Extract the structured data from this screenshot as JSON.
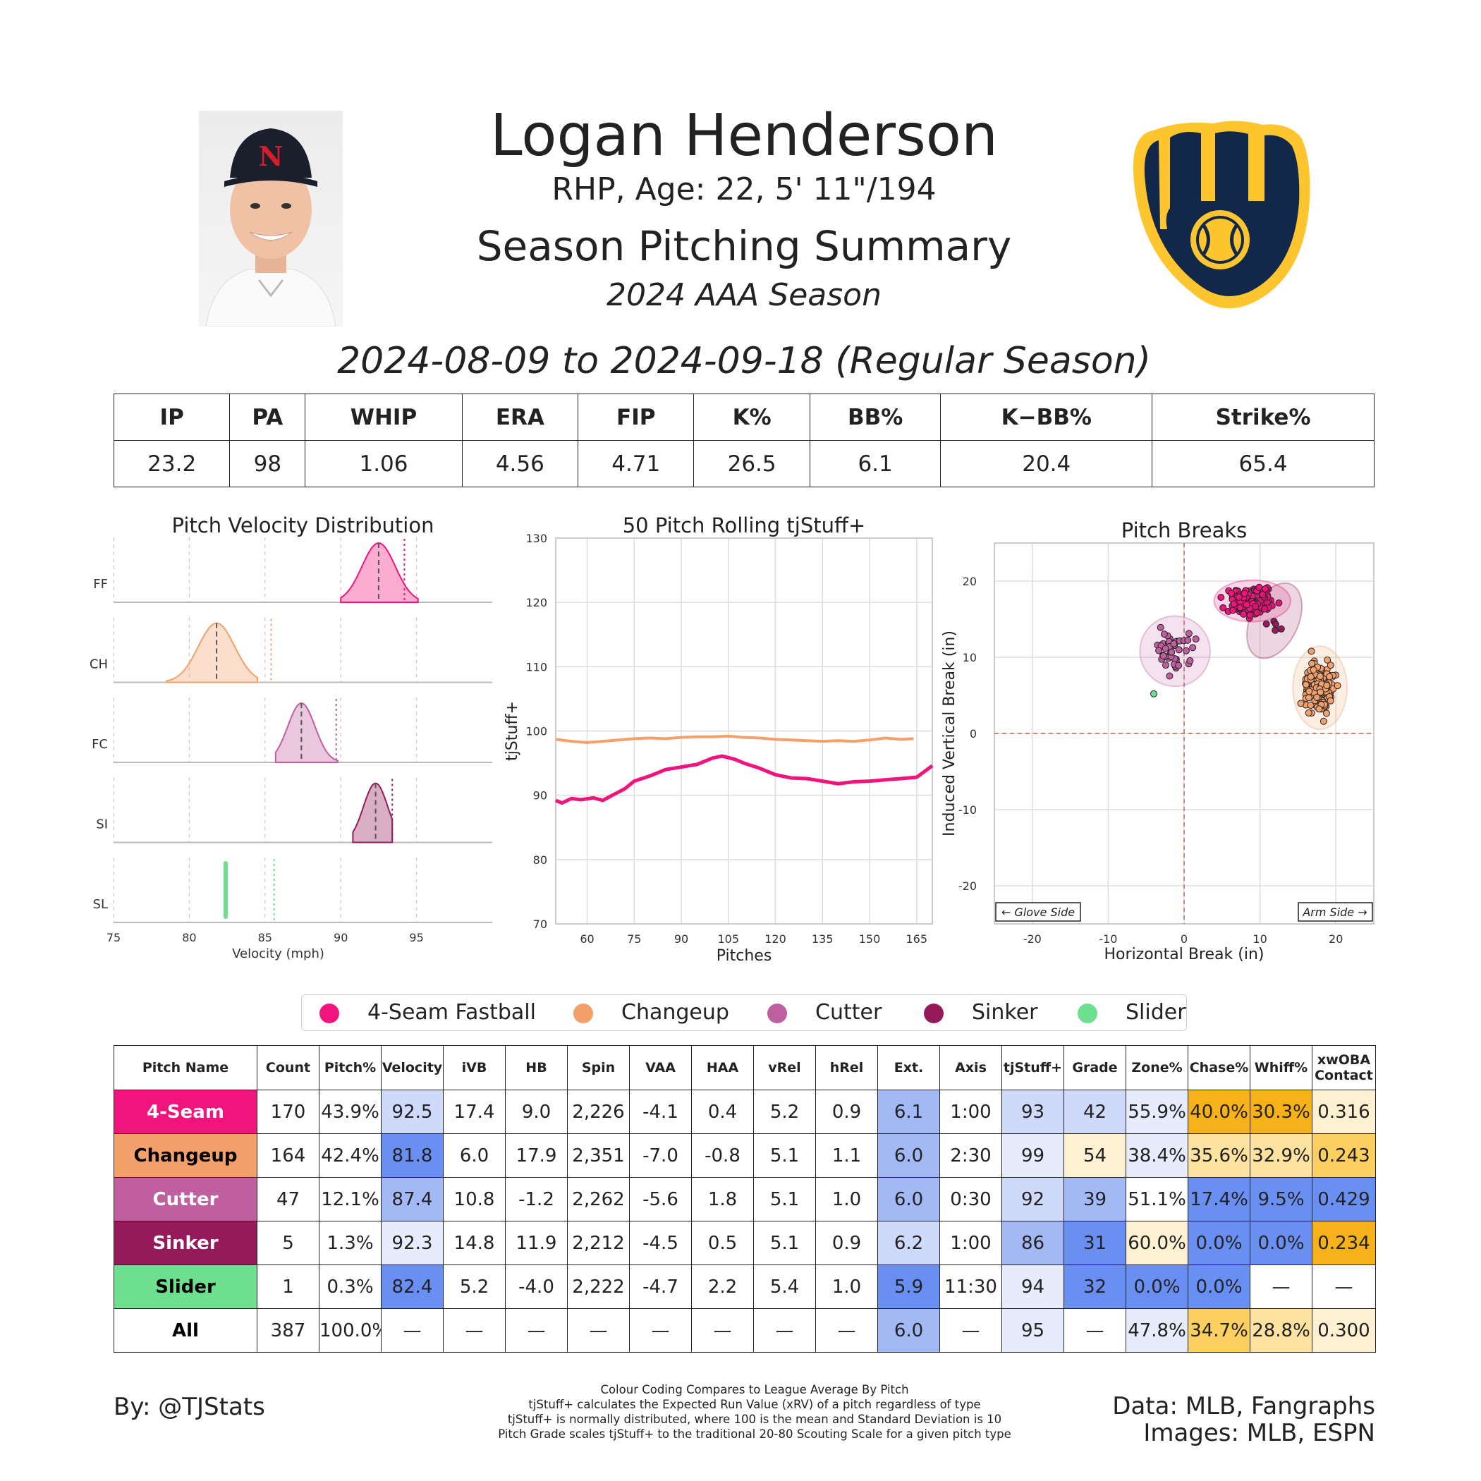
{
  "header": {
    "name": "Logan Henderson",
    "bio": "RHP, Age: 22, 5' 11\"/194",
    "title": "Season Pitching Summary",
    "season": "2024 AAA Season",
    "date_range": "2024-08-09 to 2024-09-18 (Regular Season)"
  },
  "colors": {
    "4-Seam": "#f0147c",
    "Changeup": "#f4a06b",
    "Cutter": "#c05fa0",
    "Sinker": "#941a5a",
    "Slider": "#6ddf8e",
    "blue_strong": "#6a8ff2",
    "blue_mid": "#a3b9f6",
    "blue_light": "#cfdafa",
    "blue_pale": "#e6ecfc",
    "gold_strong": "#f7b21a",
    "gold_mid": "#fbcf60",
    "gold_light": "#fde2a0",
    "gold_pale": "#fef1d2",
    "brewers_navy": "#12284b",
    "brewers_gold": "#ffc52f"
  },
  "stats": {
    "headers": [
      "IP",
      "PA",
      "WHIP",
      "ERA",
      "FIP",
      "K%",
      "BB%",
      "K−BB%",
      "Strike%"
    ],
    "values": [
      "23.2",
      "98",
      "1.06",
      "4.56",
      "4.71",
      "26.5",
      "6.1",
      "20.4",
      "65.4"
    ]
  },
  "legend": [
    "4-Seam Fastball",
    "Changeup",
    "Cutter",
    "Sinker",
    "Slider"
  ],
  "chart_data": [
    {
      "type": "area",
      "title": "Pitch Velocity Distribution",
      "xlabel": "Velocity (mph)",
      "xlim": [
        75,
        100
      ],
      "xticks": [
        "75",
        "80",
        "85",
        "90",
        "95"
      ],
      "series": [
        {
          "name": "FF",
          "mean": 92.5,
          "sd": 1.1,
          "min": 90,
          "max": 95.1,
          "league_avg": 94.2
        },
        {
          "name": "CH",
          "mean": 81.8,
          "sd": 1.2,
          "min": 78.5,
          "max": 84.5,
          "league_avg": 85.4
        },
        {
          "name": "FC",
          "mean": 87.4,
          "sd": 0.9,
          "min": 85.7,
          "max": 89.8,
          "league_avg": 89.7
        },
        {
          "name": "SI",
          "mean": 92.3,
          "sd": 0.8,
          "min": 90.8,
          "max": 93.4,
          "league_avg": 93.4
        },
        {
          "name": "SL",
          "mean": 82.4,
          "sd": 0,
          "min": 82.4,
          "max": 82.4,
          "league_avg": 85.6
        }
      ]
    },
    {
      "type": "line",
      "title": "50 Pitch Rolling tjStuff+",
      "xlabel": "Pitches",
      "ylabel": "tjStuff+",
      "xlim": [
        50,
        170
      ],
      "ylim": [
        70,
        130
      ],
      "xticks": [
        "60",
        "75",
        "90",
        "105",
        "120",
        "135",
        "150",
        "165"
      ],
      "yticks": [
        "70",
        "80",
        "90",
        "100",
        "110",
        "120",
        "130"
      ],
      "series": [
        {
          "name": "Changeup",
          "x": [
            50,
            55,
            60,
            65,
            70,
            75,
            80,
            85,
            90,
            95,
            100,
            105,
            110,
            115,
            120,
            125,
            130,
            135,
            140,
            145,
            150,
            155,
            160,
            164
          ],
          "y": [
            98.7,
            98.4,
            98.2,
            98.4,
            98.6,
            98.8,
            98.9,
            98.8,
            99.0,
            99.1,
            99.1,
            99.2,
            99.0,
            98.9,
            98.7,
            98.6,
            98.5,
            98.4,
            98.5,
            98.4,
            98.6,
            98.9,
            98.7,
            98.8
          ]
        },
        {
          "name": "4-Seam",
          "x": [
            50,
            52,
            55,
            58,
            62,
            65,
            68,
            72,
            75,
            80,
            85,
            90,
            95,
            100,
            103,
            107,
            110,
            115,
            120,
            125,
            130,
            135,
            140,
            145,
            150,
            155,
            160,
            165,
            170
          ],
          "y": [
            89.2,
            88.8,
            89.5,
            89.3,
            89.6,
            89.2,
            90.0,
            91.0,
            92.2,
            93.0,
            94.0,
            94.4,
            94.8,
            95.8,
            96.1,
            95.6,
            95.0,
            94.2,
            93.2,
            92.7,
            92.6,
            92.2,
            91.8,
            92.1,
            92.2,
            92.4,
            92.6,
            92.8,
            94.6
          ]
        }
      ]
    },
    {
      "type": "scatter",
      "title": "Pitch Breaks",
      "xlabel": "Horizontal Break (in)",
      "ylabel": "Induced Vertical Break (in)",
      "xlim": [
        -25,
        25
      ],
      "ylim": [
        -25,
        25
      ],
      "xticks": [
        "-20",
        "-10",
        "0",
        "10",
        "20"
      ],
      "yticks": [
        "20",
        "10",
        "0",
        "-10",
        "-20"
      ],
      "annotations": [
        "← Glove Side",
        "Arm Side →"
      ],
      "series": [
        {
          "name": "4-Seam",
          "count": 170,
          "cx": 9.0,
          "cy": 17.4,
          "sx": 2.4,
          "sy": 1.3
        },
        {
          "name": "Changeup",
          "count": 164,
          "cx": 17.9,
          "cy": 6.0,
          "sx": 1.7,
          "sy": 2.6
        },
        {
          "name": "Cutter",
          "count": 47,
          "cx": -1.2,
          "cy": 10.8,
          "sx": 2.2,
          "sy": 2.2
        },
        {
          "name": "Sinker",
          "count": 5,
          "cx": 11.9,
          "cy": 14.8,
          "sx": 1.5,
          "sy": 2.5
        },
        {
          "name": "Slider",
          "count": 1,
          "cx": -4.0,
          "cy": 5.2,
          "sx": 0,
          "sy": 0
        }
      ]
    }
  ],
  "pitch_table": {
    "headers": [
      "Pitch Name",
      "Count",
      "Pitch%",
      "Velocity",
      "iVB",
      "HB",
      "Spin",
      "VAA",
      "HAA",
      "vRel",
      "hRel",
      "Ext.",
      "Axis",
      "tjStuff+",
      "Grade",
      "Zone%",
      "Chase%",
      "Whiff%",
      "xwOBA Contact"
    ],
    "rows": [
      {
        "name": "4-Seam",
        "color": "4-Seam",
        "text_color": "#ffffff",
        "cells": [
          "170",
          "43.9%",
          "92.5",
          "17.4",
          "9.0",
          "2,226",
          "-4.1",
          "0.4",
          "5.2",
          "0.9",
          "6.1",
          "1:00",
          "93",
          "42",
          "55.9%",
          "40.0%",
          "30.3%",
          "0.316"
        ],
        "shades": [
          "",
          "",
          "blue_light",
          "",
          "",
          "",
          "",
          "",
          "",
          "",
          "blue_mid",
          "",
          "blue_light",
          "blue_light",
          "blue_pale",
          "gold_strong",
          "gold_strong",
          "gold_pale"
        ]
      },
      {
        "name": "Changeup",
        "color": "Changeup",
        "text_color": "#000000",
        "cells": [
          "164",
          "42.4%",
          "81.8",
          "6.0",
          "17.9",
          "2,351",
          "-7.0",
          "-0.8",
          "5.1",
          "1.1",
          "6.0",
          "2:30",
          "99",
          "54",
          "38.4%",
          "35.6%",
          "32.9%",
          "0.243"
        ],
        "shades": [
          "",
          "",
          "blue_strong",
          "",
          "",
          "",
          "",
          "",
          "",
          "",
          "blue_mid",
          "",
          "blue_pale",
          "gold_pale",
          "blue_pale",
          "gold_light",
          "gold_light",
          "gold_mid"
        ]
      },
      {
        "name": "Cutter",
        "color": "Cutter",
        "text_color": "#ffffff",
        "cells": [
          "47",
          "12.1%",
          "87.4",
          "10.8",
          "-1.2",
          "2,262",
          "-5.6",
          "1.8",
          "5.1",
          "1.0",
          "6.0",
          "0:30",
          "92",
          "39",
          "51.1%",
          "17.4%",
          "9.5%",
          "0.429"
        ],
        "shades": [
          "",
          "",
          "blue_mid",
          "",
          "",
          "",
          "",
          "",
          "",
          "",
          "blue_mid",
          "",
          "blue_light",
          "blue_mid",
          "",
          "blue_strong",
          "blue_strong",
          "blue_strong"
        ]
      },
      {
        "name": "Sinker",
        "color": "Sinker",
        "text_color": "#ffffff",
        "cells": [
          "5",
          "1.3%",
          "92.3",
          "14.8",
          "11.9",
          "2,212",
          "-4.5",
          "0.5",
          "5.1",
          "0.9",
          "6.2",
          "1:00",
          "86",
          "31",
          "60.0%",
          "0.0%",
          "0.0%",
          "0.234"
        ],
        "shades": [
          "",
          "",
          "blue_pale",
          "",
          "",
          "",
          "",
          "",
          "",
          "",
          "blue_light",
          "",
          "blue_mid",
          "blue_strong",
          "gold_pale",
          "blue_strong",
          "blue_strong",
          "gold_strong"
        ]
      },
      {
        "name": "Slider",
        "color": "Slider",
        "text_color": "#000000",
        "cells": [
          "1",
          "0.3%",
          "82.4",
          "5.2",
          "-4.0",
          "2,222",
          "-4.7",
          "2.2",
          "5.4",
          "1.0",
          "5.9",
          "11:30",
          "94",
          "32",
          "0.0%",
          "0.0%",
          "—",
          "—"
        ],
        "shades": [
          "",
          "",
          "blue_strong",
          "",
          "",
          "",
          "",
          "",
          "",
          "",
          "blue_strong",
          "",
          "blue_pale",
          "blue_strong",
          "blue_strong",
          "blue_strong",
          "",
          ""
        ]
      },
      {
        "name": "All",
        "color": "",
        "text_color": "#000000",
        "cells": [
          "387",
          "100.0%",
          "—",
          "—",
          "—",
          "—",
          "—",
          "—",
          "—",
          "—",
          "6.0",
          "—",
          "95",
          "—",
          "47.8%",
          "34.7%",
          "28.8%",
          "0.300"
        ],
        "shades": [
          "",
          "",
          "",
          "",
          "",
          "",
          "",
          "",
          "",
          "",
          "blue_mid",
          "",
          "blue_pale",
          "",
          "blue_pale",
          "gold_mid",
          "gold_light",
          "gold_pale"
        ]
      }
    ]
  },
  "footer": {
    "by": "By: @TJStats",
    "data": "Data: MLB, Fangraphs",
    "images": "Images: MLB, ESPN",
    "notes": [
      "Colour Coding Compares to League Average By Pitch",
      "tjStuff+ calculates the Expected Run Value (xRV) of a pitch regardless of type",
      "tjStuff+ is normally distributed, where 100 is the mean and Standard Deviation is 10",
      "Pitch Grade scales tjStuff+ to the traditional 20-80 Scouting Scale for a given pitch type"
    ]
  }
}
